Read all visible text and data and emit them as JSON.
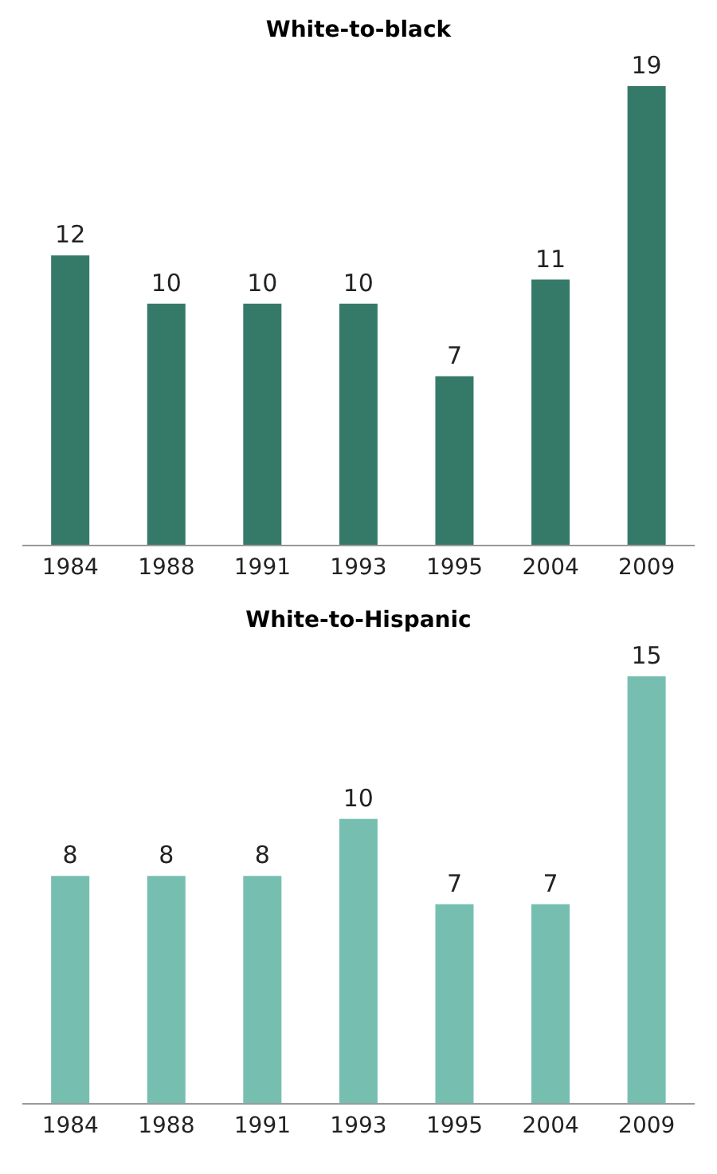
{
  "chart_data": [
    {
      "type": "bar",
      "title": "White-to-black",
      "categories": [
        "1984",
        "1988",
        "1991",
        "1993",
        "1995",
        "2004",
        "2009"
      ],
      "values": [
        12,
        10,
        10,
        10,
        7,
        11,
        19
      ],
      "color": "#357a68",
      "data_labels": true
    },
    {
      "type": "bar",
      "title": "White-to-Hispanic",
      "categories": [
        "1984",
        "1988",
        "1991",
        "1993",
        "1995",
        "2004",
        "2009"
      ],
      "values": [
        8,
        8,
        8,
        10,
        7,
        7,
        15
      ],
      "color": "#76bfb0",
      "data_labels": true
    }
  ]
}
